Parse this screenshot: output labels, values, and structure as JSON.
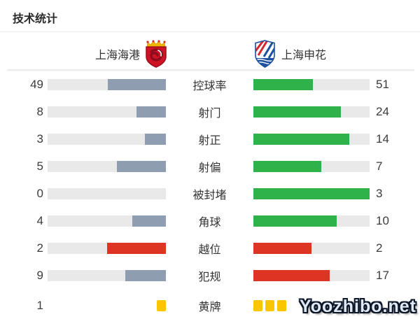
{
  "title": "技术统计",
  "teams": {
    "home": {
      "name": "上海海港"
    },
    "away": {
      "name": "上海申花"
    }
  },
  "colors": {
    "home_bar": "#8f9db1",
    "away_bar": "#2fb24a",
    "negative_bar": "#de3423",
    "yellow_card": "#fbc500",
    "bar_track": "#e9e9e9",
    "text": "#333333"
  },
  "rows": [
    {
      "label": "控球率",
      "left": {
        "value": "49",
        "pct": 49,
        "color": "home_bar"
      },
      "right": {
        "value": "51",
        "pct": 51,
        "color": "away_bar"
      }
    },
    {
      "label": "射门",
      "left": {
        "value": "8",
        "pct": 25,
        "color": "home_bar"
      },
      "right": {
        "value": "24",
        "pct": 75,
        "color": "away_bar"
      }
    },
    {
      "label": "射正",
      "left": {
        "value": "3",
        "pct": 17.6,
        "color": "home_bar"
      },
      "right": {
        "value": "14",
        "pct": 82.4,
        "color": "away_bar"
      }
    },
    {
      "label": "射偏",
      "left": {
        "value": "5",
        "pct": 41.7,
        "color": "home_bar"
      },
      "right": {
        "value": "7",
        "pct": 58.3,
        "color": "away_bar"
      }
    },
    {
      "label": "被封堵",
      "left": {
        "value": "0",
        "pct": 0,
        "color": "home_bar"
      },
      "right": {
        "value": "3",
        "pct": 100,
        "color": "away_bar"
      }
    },
    {
      "label": "角球",
      "left": {
        "value": "4",
        "pct": 28.6,
        "color": "home_bar"
      },
      "right": {
        "value": "10",
        "pct": 71.4,
        "color": "away_bar"
      }
    },
    {
      "label": "越位",
      "left": {
        "value": "2",
        "pct": 50,
        "color": "negative_bar"
      },
      "right": {
        "value": "2",
        "pct": 50,
        "color": "negative_bar"
      }
    },
    {
      "label": "犯规",
      "left": {
        "value": "9",
        "pct": 34.6,
        "color": "home_bar"
      },
      "right": {
        "value": "17",
        "pct": 65.4,
        "color": "negative_bar"
      }
    },
    {
      "label": "黄牌",
      "type": "cards",
      "left": {
        "value": "1",
        "cards": 1
      },
      "right": {
        "value": "3",
        "cards": 3
      }
    }
  ],
  "watermark": "Yoozhibo.net",
  "chart_data": {
    "type": "bar",
    "title": "技术统计",
    "categories": [
      "控球率",
      "射门",
      "射正",
      "射偏",
      "被封堵",
      "角球",
      "越位",
      "犯规",
      "黄牌"
    ],
    "series": [
      {
        "name": "上海海港",
        "values": [
          49,
          8,
          3,
          5,
          0,
          4,
          2,
          9,
          1
        ]
      },
      {
        "name": "上海申花",
        "values": [
          51,
          24,
          14,
          7,
          3,
          10,
          2,
          17,
          3
        ]
      }
    ],
    "layout": "mirrored horizontal bar pairs; home value left edge, away value right edge, stat label centered; each bar width = value/(home+away) of its track",
    "legend_position": "team names with club crests above chart",
    "grid": false,
    "notes": "越位 row bars are red on both sides; 犯规 away bar is red; 黄牌 row rendered as yellow card squares (1 vs 3) instead of bars"
  }
}
